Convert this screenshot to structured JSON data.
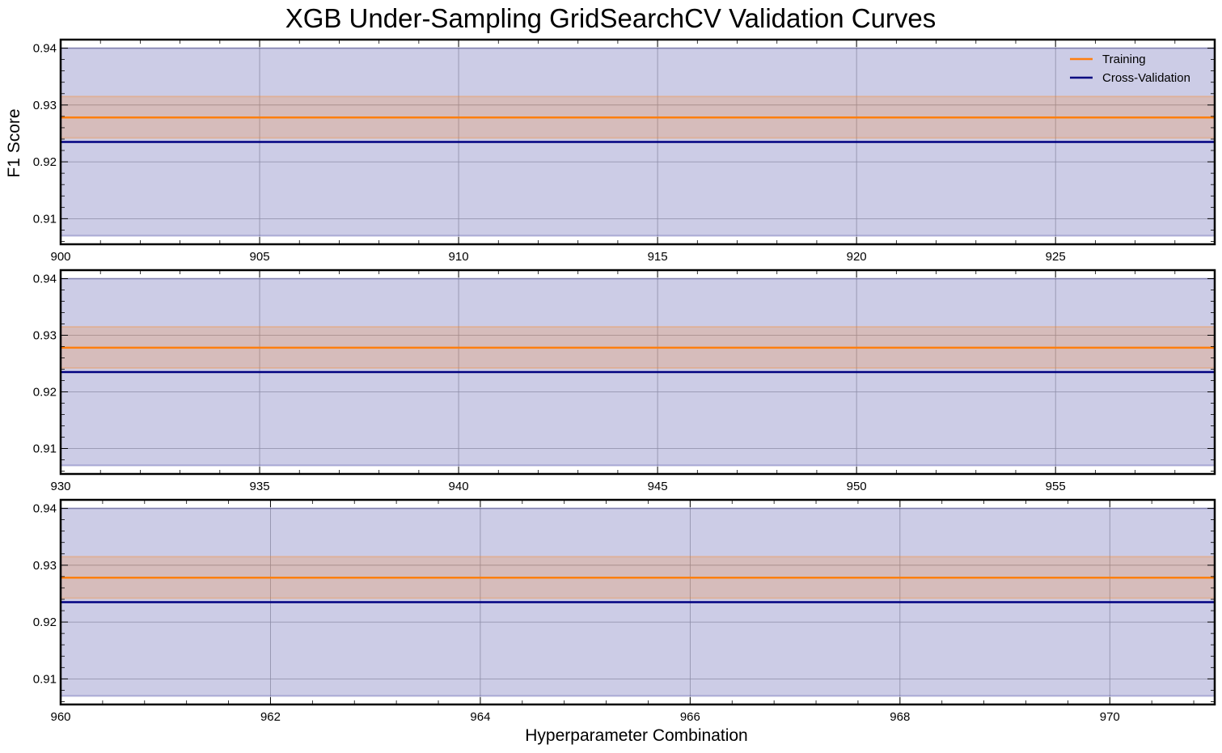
{
  "figure": {
    "title": "XGB Under-Sampling GridSearchCV Validation Curves",
    "ylabel": "F1 Score",
    "xlabel": "Hyperparameter Combination"
  },
  "legend": {
    "placement": "top-right",
    "entries": [
      "Training",
      "Cross-Validation"
    ]
  },
  "colors": {
    "training": "#ff7f0e",
    "cross_validation": "#000080",
    "training_band": "#ff7f0e",
    "cv_band": "#000080",
    "grid": "#b0b0b0",
    "frame": "#000000"
  },
  "chart_data": [
    {
      "type": "line",
      "xlim": [
        900,
        929
      ],
      "ylim": [
        0.9055,
        0.9415
      ],
      "xticks": [
        900,
        905,
        910,
        915,
        920,
        925
      ],
      "yticks": [
        0.91,
        0.92,
        0.93,
        0.94
      ],
      "grid": true,
      "series": [
        {
          "name": "Training",
          "x": [
            900,
            929
          ],
          "y": [
            0.9278,
            0.9278
          ],
          "band": [
            0.9242,
            0.9315
          ]
        },
        {
          "name": "Cross-Validation",
          "x": [
            900,
            929
          ],
          "y": [
            0.9235,
            0.9235
          ],
          "band": [
            0.907,
            0.94
          ]
        }
      ]
    },
    {
      "type": "line",
      "xlim": [
        930,
        959
      ],
      "ylim": [
        0.9055,
        0.9415
      ],
      "xticks": [
        930,
        935,
        940,
        945,
        950,
        955
      ],
      "yticks": [
        0.91,
        0.92,
        0.93,
        0.94
      ],
      "grid": true,
      "series": [
        {
          "name": "Training",
          "x": [
            930,
            959
          ],
          "y": [
            0.9278,
            0.9278
          ],
          "band": [
            0.9242,
            0.9315
          ]
        },
        {
          "name": "Cross-Validation",
          "x": [
            930,
            959
          ],
          "y": [
            0.9235,
            0.9235
          ],
          "band": [
            0.907,
            0.94
          ]
        }
      ]
    },
    {
      "type": "line",
      "xlim": [
        960,
        971
      ],
      "ylim": [
        0.9055,
        0.9415
      ],
      "xticks": [
        960,
        962,
        964,
        966,
        968,
        970
      ],
      "yticks": [
        0.91,
        0.92,
        0.93,
        0.94
      ],
      "grid": true,
      "series": [
        {
          "name": "Training",
          "x": [
            960,
            971
          ],
          "y": [
            0.9278,
            0.9278
          ],
          "band": [
            0.9242,
            0.9315
          ]
        },
        {
          "name": "Cross-Validation",
          "x": [
            960,
            971
          ],
          "y": [
            0.9235,
            0.9235
          ],
          "band": [
            0.907,
            0.94
          ]
        }
      ]
    }
  ]
}
